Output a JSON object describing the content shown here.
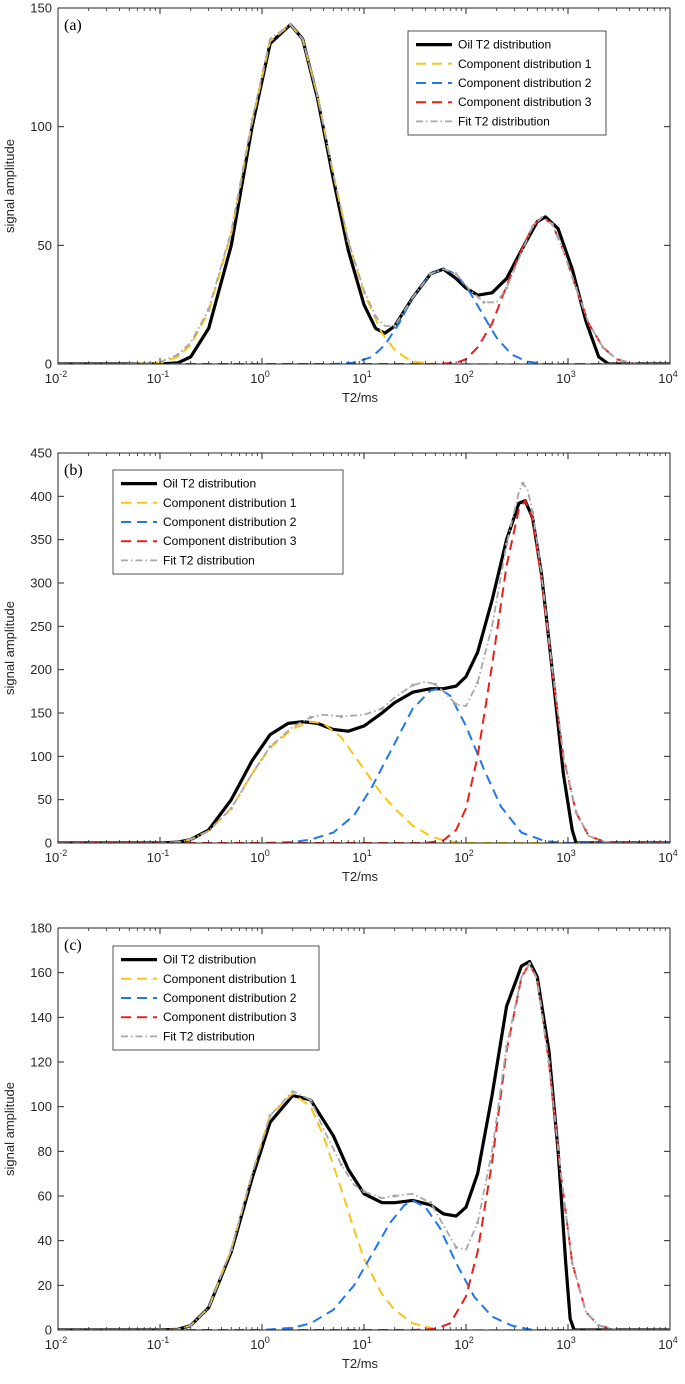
{
  "chart_data": [
    {
      "type": "line",
      "panel_label": "(a)",
      "xlabel": "T2/ms",
      "ylabel": "signal amplitude",
      "xscale": "log",
      "xlim": [
        0.01,
        10000
      ],
      "ylim": [
        0,
        150
      ],
      "xticks": [
        0.01,
        0.1,
        1,
        10,
        100,
        1000,
        10000
      ],
      "xtick_labels": [
        [
          "10",
          "-2"
        ],
        [
          "10",
          "-1"
        ],
        [
          "10",
          "0"
        ],
        [
          "10",
          "1"
        ],
        [
          "10",
          "2"
        ],
        [
          "10",
          "3"
        ],
        [
          "10",
          "4"
        ]
      ],
      "yticks": [
        0,
        50,
        100,
        150
      ],
      "ytick_labels": [
        "0",
        "50",
        "100",
        "150"
      ],
      "legend_position": "top-right",
      "series": [
        {
          "name": "Oil T2 distribution",
          "color": "#000000",
          "style": "solid",
          "width": 3.2,
          "x": [
            0.01,
            0.1,
            0.15,
            0.2,
            0.3,
            0.5,
            0.8,
            1.2,
            1.9,
            2.5,
            3.5,
            5,
            7,
            10,
            13,
            16,
            20,
            30,
            45,
            60,
            80,
            100,
            130,
            180,
            250,
            350,
            500,
            600,
            800,
            1100,
            1500,
            2000,
            2500,
            10000
          ],
          "y": [
            0,
            0,
            0.5,
            3,
            15,
            50,
            100,
            135,
            143,
            137,
            112,
            78,
            48,
            25,
            15,
            13,
            16,
            28,
            38,
            40,
            36,
            32,
            29,
            30,
            36,
            48,
            60,
            62,
            57,
            40,
            18,
            3,
            0,
            0
          ]
        },
        {
          "name": "Component distribution 1",
          "color": "#f5c518",
          "style": "dashed",
          "width": 2,
          "x": [
            0.01,
            0.05,
            0.1,
            0.15,
            0.2,
            0.3,
            0.5,
            0.8,
            1.2,
            1.9,
            2.5,
            3.5,
            5,
            7,
            10,
            15,
            20,
            25,
            30,
            50,
            10000
          ],
          "y": [
            0,
            0,
            0.5,
            3,
            8,
            22,
            55,
            102,
            136,
            143,
            137,
            113,
            80,
            52,
            30,
            13,
            6,
            3,
            1,
            0,
            0
          ]
        },
        {
          "name": "Component distribution 2",
          "color": "#1f77e8",
          "style": "dashed",
          "width": 2,
          "x": [
            0.01,
            5,
            8,
            12,
            16,
            22,
            30,
            45,
            60,
            80,
            110,
            150,
            200,
            280,
            400,
            600,
            1000,
            10000
          ],
          "y": [
            0,
            0,
            0.5,
            3,
            8,
            17,
            28,
            38,
            40,
            38,
            30,
            20,
            11,
            4,
            1,
            0,
            0,
            0
          ]
        },
        {
          "name": "Component distribution 3",
          "color": "#e8201c",
          "style": "dashed",
          "width": 2,
          "x": [
            0.01,
            50,
            80,
            100,
            130,
            180,
            250,
            350,
            450,
            560,
            700,
            900,
            1200,
            1600,
            2200,
            3000,
            4500,
            10000
          ],
          "y": [
            0,
            0,
            0.5,
            2,
            7,
            17,
            33,
            48,
            58,
            62,
            59,
            48,
            32,
            17,
            7,
            2,
            0,
            0
          ]
        },
        {
          "name": "Fit T2 distribution",
          "color": "#a8a8a8",
          "style": "dashdot",
          "width": 1.8,
          "x": [
            0.01,
            0.05,
            0.1,
            0.15,
            0.2,
            0.3,
            0.5,
            0.8,
            1.2,
            1.9,
            2.5,
            3.5,
            5,
            7,
            10,
            13,
            16,
            20,
            30,
            45,
            60,
            80,
            110,
            150,
            200,
            250,
            350,
            450,
            560,
            700,
            900,
            1200,
            1600,
            2200,
            3000,
            4500,
            10000
          ],
          "y": [
            0,
            0,
            0.8,
            4,
            9,
            23,
            56,
            103,
            137,
            143,
            137,
            113,
            80,
            52,
            31,
            20,
            16,
            16,
            28,
            38,
            40,
            38,
            31,
            26,
            26,
            32,
            47,
            58,
            62,
            59,
            48,
            32,
            17,
            7,
            2,
            0,
            0
          ]
        }
      ]
    },
    {
      "type": "line",
      "panel_label": "(b)",
      "xlabel": "T2/ms",
      "ylabel": "signal amplitude",
      "xscale": "log",
      "xlim": [
        0.01,
        10000
      ],
      "ylim": [
        0,
        450
      ],
      "xticks": [
        0.01,
        0.1,
        1,
        10,
        100,
        1000,
        10000
      ],
      "xtick_labels": [
        [
          "10",
          "-2"
        ],
        [
          "10",
          "-1"
        ],
        [
          "10",
          "0"
        ],
        [
          "10",
          "1"
        ],
        [
          "10",
          "2"
        ],
        [
          "10",
          "3"
        ],
        [
          "10",
          "4"
        ]
      ],
      "yticks": [
        0,
        50,
        100,
        150,
        200,
        250,
        300,
        350,
        400,
        450
      ],
      "ytick_labels": [
        "0",
        "50",
        "100",
        "150",
        "200",
        "250",
        "300",
        "350",
        "400",
        "450"
      ],
      "legend_position": "top-left",
      "series": [
        {
          "name": "Oil T2 distribution",
          "color": "#000000",
          "style": "solid",
          "width": 3.2,
          "x": [
            0.01,
            0.1,
            0.15,
            0.2,
            0.3,
            0.5,
            0.8,
            1.2,
            1.8,
            2.5,
            3.5,
            5,
            7,
            10,
            15,
            20,
            30,
            45,
            60,
            80,
            100,
            130,
            180,
            250,
            330,
            380,
            450,
            550,
            700,
            900,
            1100,
            1200,
            10000
          ],
          "y": [
            0,
            0,
            1,
            4,
            15,
            50,
            95,
            125,
            138,
            140,
            138,
            131,
            129,
            135,
            150,
            162,
            174,
            178,
            178,
            181,
            192,
            220,
            280,
            350,
            392,
            395,
            375,
            310,
            200,
            80,
            15,
            0,
            0
          ]
        },
        {
          "name": "Component distribution 1",
          "color": "#f5c518",
          "style": "dashed",
          "width": 2,
          "x": [
            0.01,
            0.1,
            0.15,
            0.2,
            0.3,
            0.5,
            0.8,
            1.2,
            2,
            3,
            4,
            6,
            10,
            15,
            20,
            30,
            45,
            60,
            80,
            100,
            150,
            10000
          ],
          "y": [
            0,
            0,
            1,
            4,
            14,
            40,
            80,
            110,
            132,
            140,
            138,
            122,
            85,
            56,
            40,
            20,
            8,
            3,
            1,
            0,
            0,
            0
          ]
        },
        {
          "name": "Component distribution 2",
          "color": "#1f77e8",
          "style": "dashed",
          "width": 2,
          "x": [
            0.01,
            1,
            2,
            3,
            5,
            8,
            12,
            20,
            30,
            45,
            55,
            70,
            100,
            150,
            220,
            350,
            600,
            1000,
            10000
          ],
          "y": [
            0,
            0,
            1,
            4,
            12,
            32,
            65,
            115,
            155,
            176,
            178,
            170,
            135,
            85,
            42,
            12,
            2,
            0,
            0
          ]
        },
        {
          "name": "Component distribution 3",
          "color": "#e8201c",
          "style": "dashed",
          "width": 2,
          "x": [
            0.01,
            40,
            60,
            80,
            100,
            130,
            180,
            250,
            330,
            380,
            450,
            550,
            700,
            900,
            1200,
            1600,
            2500,
            10000
          ],
          "y": [
            0,
            0,
            3,
            15,
            40,
            100,
            205,
            320,
            385,
            395,
            375,
            305,
            200,
            100,
            35,
            8,
            0,
            0
          ]
        },
        {
          "name": "Fit T2 distribution",
          "color": "#a8a8a8",
          "style": "dashdot",
          "width": 1.8,
          "x": [
            0.01,
            0.1,
            0.15,
            0.2,
            0.3,
            0.5,
            0.8,
            1.2,
            2,
            3,
            4,
            6,
            10,
            15,
            20,
            30,
            40,
            50,
            60,
            80,
            100,
            130,
            180,
            250,
            330,
            360,
            400,
            450,
            550,
            700,
            900,
            1200,
            1600,
            2500,
            10000
          ],
          "y": [
            0,
            0,
            1,
            4,
            14,
            40,
            80,
            111,
            134,
            145,
            148,
            146,
            148,
            155,
            168,
            182,
            186,
            183,
            175,
            160,
            158,
            185,
            250,
            345,
            405,
            415,
            408,
            382,
            310,
            202,
            101,
            36,
            8,
            0,
            0
          ]
        }
      ]
    },
    {
      "type": "line",
      "panel_label": "(c)",
      "xlabel": "T2/ms",
      "ylabel": "signal amplitude",
      "xscale": "log",
      "xlim": [
        0.01,
        10000
      ],
      "ylim": [
        0,
        180
      ],
      "xticks": [
        0.01,
        0.1,
        1,
        10,
        100,
        1000,
        10000
      ],
      "xtick_labels": [
        [
          "10",
          "-2"
        ],
        [
          "10",
          "-1"
        ],
        [
          "10",
          "0"
        ],
        [
          "10",
          "1"
        ],
        [
          "10",
          "2"
        ],
        [
          "10",
          "3"
        ],
        [
          "10",
          "4"
        ]
      ],
      "yticks": [
        0,
        20,
        40,
        60,
        80,
        100,
        120,
        140,
        160,
        180
      ],
      "ytick_labels": [
        "0",
        "20",
        "40",
        "60",
        "80",
        "100",
        "120",
        "140",
        "160",
        "180"
      ],
      "legend_position": "top-left",
      "series": [
        {
          "name": "Oil T2 distribution",
          "color": "#000000",
          "style": "solid",
          "width": 3.2,
          "x": [
            0.01,
            0.1,
            0.15,
            0.2,
            0.3,
            0.5,
            0.8,
            1.2,
            2,
            3,
            5,
            7,
            10,
            15,
            20,
            30,
            45,
            60,
            80,
            100,
            130,
            180,
            250,
            350,
            420,
            500,
            650,
            800,
            950,
            1050,
            1150,
            10000
          ],
          "y": [
            0,
            0,
            0.3,
            2,
            10,
            35,
            68,
            93,
            105,
            103,
            87,
            72,
            61,
            57,
            57,
            58,
            56,
            52,
            51,
            55,
            70,
            105,
            145,
            163,
            165,
            158,
            125,
            80,
            30,
            5,
            0,
            0
          ]
        },
        {
          "name": "Component distribution 1",
          "color": "#f5c518",
          "style": "dashed",
          "width": 2,
          "x": [
            0.01,
            0.1,
            0.15,
            0.2,
            0.3,
            0.5,
            0.8,
            1.2,
            2,
            3,
            4,
            6,
            8,
            10,
            15,
            20,
            30,
            45,
            60,
            100,
            10000
          ],
          "y": [
            0,
            0,
            0.3,
            2,
            10,
            36,
            70,
            96,
            106,
            100,
            87,
            63,
            45,
            32,
            16,
            9,
            3,
            1,
            0,
            0,
            0
          ]
        },
        {
          "name": "Component distribution 2",
          "color": "#1f77e8",
          "style": "dashed",
          "width": 2,
          "x": [
            0.01,
            1,
            2,
            3,
            5,
            8,
            12,
            18,
            25,
            30,
            40,
            55,
            80,
            120,
            180,
            280,
            450,
            800,
            10000
          ],
          "y": [
            0,
            0,
            1,
            3,
            9,
            20,
            34,
            48,
            56,
            58,
            55,
            46,
            30,
            15,
            6,
            2,
            0,
            0,
            0
          ]
        },
        {
          "name": "Component distribution 3",
          "color": "#e8201c",
          "style": "dashed",
          "width": 2,
          "x": [
            0.01,
            30,
            50,
            70,
            100,
            130,
            180,
            250,
            350,
            420,
            500,
            650,
            850,
            1100,
            1500,
            2000,
            3000,
            10000
          ],
          "y": [
            0,
            0,
            0.5,
            3,
            15,
            35,
            75,
            125,
            158,
            164,
            157,
            120,
            70,
            30,
            8,
            2,
            0,
            0
          ]
        },
        {
          "name": "Fit T2 distribution",
          "color": "#a8a8a8",
          "style": "dashdot",
          "width": 1.8,
          "x": [
            0.01,
            0.1,
            0.15,
            0.2,
            0.3,
            0.5,
            0.8,
            1.2,
            2,
            3,
            4,
            6,
            8,
            10,
            15,
            20,
            30,
            45,
            60,
            80,
            100,
            130,
            180,
            250,
            350,
            420,
            500,
            650,
            850,
            1100,
            1500,
            2000,
            3000,
            10000
          ],
          "y": [
            0,
            0,
            0.3,
            2,
            10,
            36,
            70,
            96,
            107,
            103,
            90,
            74,
            65,
            62,
            59,
            60,
            61,
            57,
            47,
            37,
            36,
            48,
            80,
            127,
            158,
            164,
            157,
            120,
            70,
            30,
            8,
            2,
            0,
            0
          ]
        }
      ]
    }
  ]
}
